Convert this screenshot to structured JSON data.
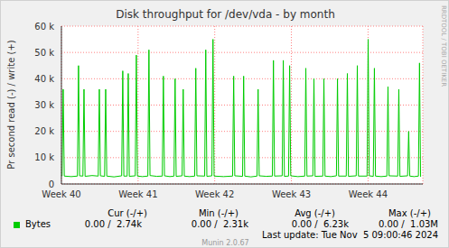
{
  "chart_data": {
    "type": "line",
    "title": "Disk throughput for /dev/vda - by month",
    "y_label": "Pr second read (-) / write (+)",
    "xlim": [
      0,
      33
    ],
    "xticks": [
      {
        "value": 0,
        "label": "Week 40"
      },
      {
        "value": 7,
        "label": "Week 41"
      },
      {
        "value": 14,
        "label": "Week 42"
      },
      {
        "value": 21,
        "label": "Week 43"
      },
      {
        "value": 28,
        "label": "Week 44"
      }
    ],
    "ylim": [
      0,
      60000
    ],
    "yticks": [
      {
        "value": 0,
        "label": "0"
      },
      {
        "value": 10000,
        "label": "10 k"
      },
      {
        "value": 20000,
        "label": "20 k"
      },
      {
        "value": 30000,
        "label": "30 k"
      },
      {
        "value": 40000,
        "label": "40 k"
      },
      {
        "value": 50000,
        "label": "50 k"
      },
      {
        "value": 60000,
        "label": "60 k"
      }
    ],
    "grid": true,
    "x": [
      0,
      0.06,
      0.16,
      0.26,
      0.9,
      1.46,
      1.56,
      1.66,
      1.96,
      2.06,
      2.16,
      2.8,
      3.36,
      3.46,
      3.56,
      3.94,
      4.04,
      4.14,
      4.8,
      5.5,
      5.6,
      5.7,
      6.0,
      6.1,
      6.2,
      6.74,
      6.84,
      6.94,
      7.4,
      7.89,
      7.99,
      8.09,
      8.7,
      9.21,
      9.31,
      9.41,
      9.9,
      10.28,
      10.38,
      10.48,
      11.02,
      11.12,
      11.22,
      11.7,
      12.17,
      12.27,
      12.37,
      13.08,
      13.18,
      13.28,
      13.74,
      13.84,
      13.94,
      14.8,
      15.63,
      15.73,
      15.83,
      16.54,
      16.64,
      16.74,
      17.3,
      17.86,
      17.96,
      18.06,
      18.7,
      19.26,
      19.36,
      19.46,
      20.16,
      20.26,
      20.36,
      20.74,
      20.84,
      20.94,
      21.6,
      22.22,
      22.32,
      22.42,
      22.96,
      23.06,
      23.16,
      23.87,
      23.97,
      24.07,
      24.6,
      25.11,
      25.21,
      25.31,
      26.01,
      26.11,
      26.21,
      26.92,
      27.02,
      27.12,
      27.91,
      28.01,
      28.11,
      28.48,
      28.58,
      28.68,
      29.2,
      29.72,
      29.82,
      29.92,
      30.71,
      30.81,
      30.91,
      31.61,
      31.71,
      31.81,
      32.2,
      32.6,
      32.7,
      32.8
    ],
    "series": [
      {
        "name": "Bytes",
        "color": "#00cc00",
        "values": [
          3000,
          3100,
          36000,
          3000,
          2800,
          3000,
          45000,
          3100,
          3000,
          36000,
          2900,
          3200,
          3000,
          36000,
          3100,
          2900,
          36000,
          3000,
          2700,
          3100,
          43000,
          3000,
          3000,
          42000,
          2900,
          3100,
          49000,
          3000,
          2800,
          3000,
          51000,
          3200,
          2900,
          3000,
          41000,
          3100,
          2800,
          3000,
          40000,
          2900,
          3100,
          36000,
          3000,
          2800,
          3000,
          44000,
          3100,
          3000,
          51000,
          2900,
          3100,
          55000,
          3000,
          2800,
          3000,
          41000,
          3100,
          2900,
          41000,
          3000,
          2700,
          3000,
          36000,
          3100,
          2900,
          3000,
          47000,
          3000,
          3100,
          47000,
          2900,
          3000,
          45000,
          3100,
          2800,
          3000,
          44000,
          3000,
          3100,
          40000,
          2900,
          3000,
          40000,
          3000,
          2800,
          3100,
          40000,
          3000,
          3000,
          42000,
          2900,
          3100,
          45000,
          3000,
          3000,
          55000,
          3100,
          2900,
          44000,
          3000,
          2800,
          3000,
          37000,
          3100,
          3000,
          36000,
          2900,
          3100,
          20000,
          3000,
          2800,
          3000,
          46000,
          2740
        ],
        "stats": {
          "columns": [
            "Cur (-/+)",
            "Min (-/+)",
            "Avg (-/+)",
            "Max (-/+)"
          ],
          "values": [
            "0.00 /  2.74k",
            "0.00 /  2.31k",
            "0.00 /  6.23k",
            "0.00 /  1.03M"
          ]
        }
      }
    ],
    "annotations": [
      "Last update: Tue Nov  5 09:00:46 2024",
      "Munin 2.0.67",
      "RRDTOOL / TOBI OETIKER"
    ]
  }
}
